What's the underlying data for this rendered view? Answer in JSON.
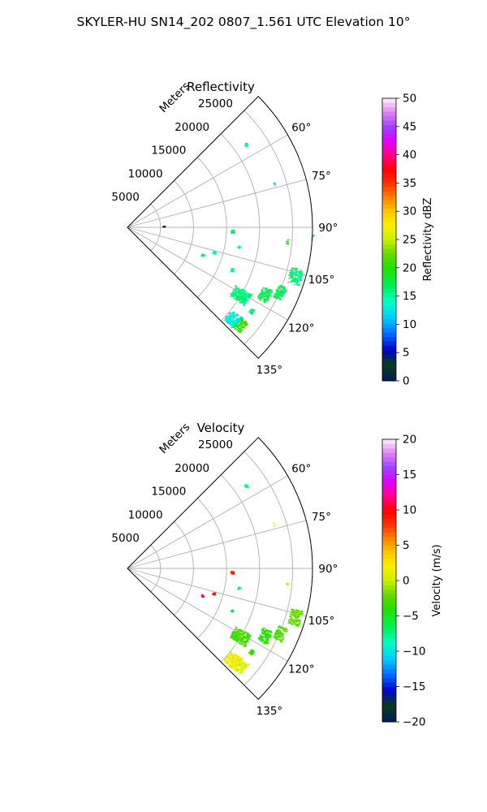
{
  "figure": {
    "suptitle": "SKYLER-HU  SN14_202  0807_1.561 UTC Elevation 10°"
  },
  "chart_data": [
    {
      "type": "polar-sector",
      "title": "Reflectivity",
      "r_axis_label": "Meters",
      "r_ticks": [
        5000,
        10000,
        15000,
        20000,
        25000
      ],
      "r_tick_labels": [
        "5000",
        "10000",
        "15000",
        "20000",
        "25000"
      ],
      "r_max": 28000,
      "theta_range_deg": [
        45,
        135
      ],
      "theta_ticks_deg": [
        60,
        75,
        90,
        105,
        120,
        135
      ],
      "theta_tick_labels": [
        "60°",
        "75°",
        "90°",
        "105°",
        "120°",
        "135°"
      ],
      "grid": true,
      "colorbar": {
        "label": "Reflectivity dBZ",
        "range": [
          0,
          50
        ],
        "ticks": [
          "0",
          "5",
          "10",
          "15",
          "20",
          "25",
          "30",
          "35",
          "40",
          "45",
          "50"
        ]
      },
      "echo_clusters": [
        {
          "azimuth_deg": 55,
          "range_m": 21800,
          "value": 15,
          "count": 5
        },
        {
          "azimuth_deg": 73,
          "range_m": 23200,
          "value": 14,
          "count": 2
        },
        {
          "azimuth_deg": 88,
          "range_m": 5400,
          "value": 3,
          "count": 2
        },
        {
          "azimuth_deg": 92,
          "range_m": 15800,
          "value": 16,
          "count": 14
        },
        {
          "azimuth_deg": 95,
          "range_m": 24200,
          "value": 20,
          "count": 4
        },
        {
          "azimuth_deg": 93,
          "range_m": 28000,
          "value": 17,
          "count": 3
        },
        {
          "azimuth_deg": 100,
          "range_m": 17000,
          "value": 15,
          "count": 4
        },
        {
          "azimuth_deg": 106,
          "range_m": 13500,
          "value": 15,
          "count": 6
        },
        {
          "azimuth_deg": 110,
          "range_m": 12000,
          "value": 16,
          "count": 6
        },
        {
          "azimuth_deg": 112,
          "range_m": 17000,
          "value": 14,
          "count": 6
        },
        {
          "azimuth_deg": 106,
          "range_m": 26300,
          "value": 16,
          "count": 60
        },
        {
          "azimuth_deg": 113,
          "range_m": 25000,
          "value": 17,
          "count": 40
        },
        {
          "azimuth_deg": 116,
          "range_m": 23000,
          "value": 17,
          "count": 50
        },
        {
          "azimuth_deg": 121,
          "range_m": 19800,
          "value": 16,
          "count": 100
        },
        {
          "azimuth_deg": 124,
          "range_m": 22500,
          "value": 16,
          "count": 20
        },
        {
          "azimuth_deg": 131,
          "range_m": 21000,
          "value": 13,
          "count": 70
        },
        {
          "azimuth_deg": 131,
          "range_m": 22500,
          "value": 21,
          "count": 40
        }
      ]
    },
    {
      "type": "polar-sector",
      "title": "Velocity",
      "r_axis_label": "Meters",
      "r_ticks": [
        5000,
        10000,
        15000,
        20000,
        25000
      ],
      "r_tick_labels": [
        "5000",
        "10000",
        "15000",
        "20000",
        "25000"
      ],
      "r_max": 28000,
      "theta_range_deg": [
        45,
        135
      ],
      "theta_ticks_deg": [
        60,
        75,
        90,
        105,
        120,
        135
      ],
      "theta_tick_labels": [
        "60°",
        "75°",
        "90°",
        "105°",
        "120°",
        "135°"
      ],
      "grid": true,
      "colorbar": {
        "label": "Velocity (m/s)",
        "range": [
          -20,
          20
        ],
        "ticks": [
          "−20",
          "−15",
          "−10",
          "−5",
          "0",
          "5",
          "10",
          "15",
          "20"
        ]
      },
      "echo_clusters": [
        {
          "azimuth_deg": 55,
          "range_m": 21800,
          "value": -7,
          "count": 5
        },
        {
          "azimuth_deg": 73,
          "range_m": 23200,
          "value": 2,
          "count": 2
        },
        {
          "azimuth_deg": 92,
          "range_m": 15800,
          "value": 9,
          "count": 14
        },
        {
          "azimuth_deg": 95,
          "range_m": 24200,
          "value": 1,
          "count": 4
        },
        {
          "azimuth_deg": 93,
          "range_m": 28000,
          "value": 1,
          "count": 3
        },
        {
          "azimuth_deg": 100,
          "range_m": 17000,
          "value": -6,
          "count": 4
        },
        {
          "azimuth_deg": 106,
          "range_m": 13500,
          "value": 10,
          "count": 6
        },
        {
          "azimuth_deg": 110,
          "range_m": 12000,
          "value": 10,
          "count": 6
        },
        {
          "azimuth_deg": 112,
          "range_m": 17000,
          "value": -6,
          "count": 6
        },
        {
          "azimuth_deg": 106,
          "range_m": 26300,
          "value": -2,
          "count": 60
        },
        {
          "azimuth_deg": 113,
          "range_m": 25000,
          "value": -3,
          "count": 40
        },
        {
          "azimuth_deg": 116,
          "range_m": 23000,
          "value": -4,
          "count": 50
        },
        {
          "azimuth_deg": 121,
          "range_m": 19800,
          "value": -3,
          "count": 100
        },
        {
          "azimuth_deg": 124,
          "range_m": 22500,
          "value": -4,
          "count": 20
        },
        {
          "azimuth_deg": 131,
          "range_m": 21000,
          "value": 2,
          "count": 70
        },
        {
          "azimuth_deg": 131,
          "range_m": 22500,
          "value": 1,
          "count": 40
        }
      ]
    }
  ]
}
